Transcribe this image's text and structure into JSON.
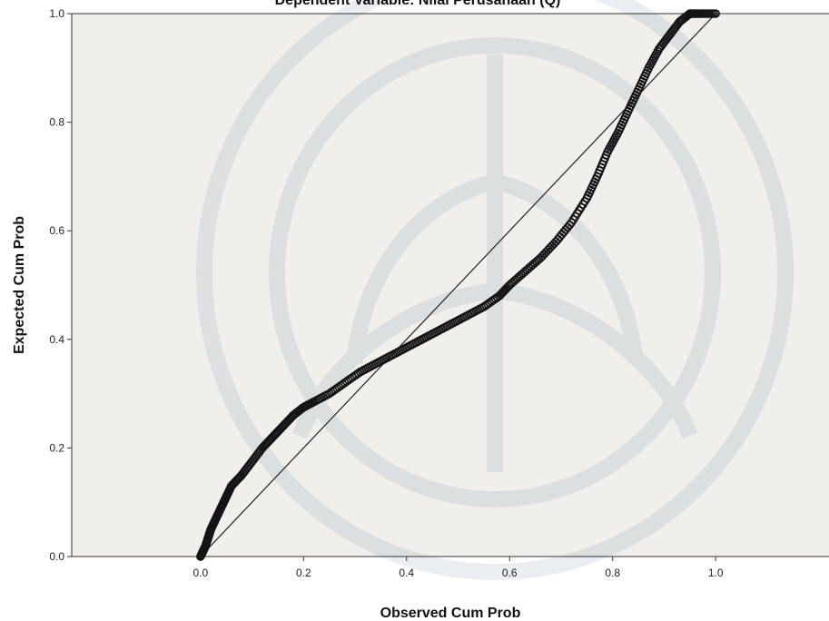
{
  "chart_data": {
    "type": "scatter",
    "title": "Dependent Variable: Nilai Perusahaan (Q)",
    "xlabel": "Observed Cum Prob",
    "ylabel": "Expected Cum Prob",
    "xlim": [
      -0.25,
      1.22
    ],
    "ylim": [
      0,
      1
    ],
    "x_ticks": [
      "0.0",
      "0.2",
      "0.4",
      "0.6",
      "0.8",
      "1.0"
    ],
    "y_ticks": [
      "0.0",
      "0.2",
      "0.4",
      "0.6",
      "0.8",
      "1.0"
    ],
    "grid": false,
    "legend": "none",
    "reference_line": {
      "x": [
        0,
        1
      ],
      "y": [
        0,
        1
      ]
    },
    "series": [
      {
        "marker": "hollow-circle",
        "points": [
          [
            0.0,
            0.0
          ],
          [
            0.005,
            0.01
          ],
          [
            0.01,
            0.02
          ],
          [
            0.015,
            0.035
          ],
          [
            0.02,
            0.05
          ],
          [
            0.03,
            0.07
          ],
          [
            0.04,
            0.09
          ],
          [
            0.05,
            0.11
          ],
          [
            0.06,
            0.13
          ],
          [
            0.08,
            0.15
          ],
          [
            0.1,
            0.175
          ],
          [
            0.12,
            0.2
          ],
          [
            0.14,
            0.22
          ],
          [
            0.16,
            0.24
          ],
          [
            0.18,
            0.26
          ],
          [
            0.2,
            0.275
          ],
          [
            0.22,
            0.285
          ],
          [
            0.25,
            0.3
          ],
          [
            0.28,
            0.32
          ],
          [
            0.31,
            0.34
          ],
          [
            0.34,
            0.355
          ],
          [
            0.37,
            0.37
          ],
          [
            0.4,
            0.385
          ],
          [
            0.43,
            0.4
          ],
          [
            0.46,
            0.415
          ],
          [
            0.49,
            0.43
          ],
          [
            0.52,
            0.445
          ],
          [
            0.55,
            0.46
          ],
          [
            0.58,
            0.48
          ],
          [
            0.6,
            0.5
          ],
          [
            0.63,
            0.525
          ],
          [
            0.66,
            0.55
          ],
          [
            0.69,
            0.58
          ],
          [
            0.72,
            0.615
          ],
          [
            0.75,
            0.66
          ],
          [
            0.77,
            0.7
          ],
          [
            0.79,
            0.745
          ],
          [
            0.81,
            0.78
          ],
          [
            0.83,
            0.82
          ],
          [
            0.85,
            0.86
          ],
          [
            0.87,
            0.9
          ],
          [
            0.89,
            0.935
          ],
          [
            0.91,
            0.96
          ],
          [
            0.93,
            0.985
          ],
          [
            0.95,
            1.0
          ],
          [
            0.97,
            1.0
          ],
          [
            1.0,
            1.0
          ]
        ]
      }
    ]
  }
}
